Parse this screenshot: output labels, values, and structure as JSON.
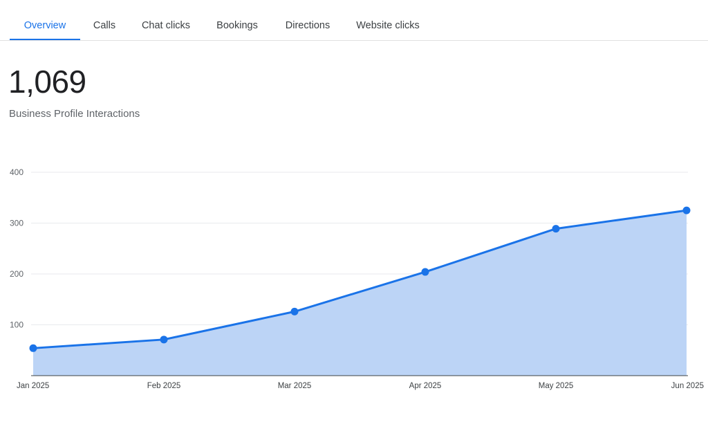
{
  "tabs": [
    {
      "label": "Overview",
      "active": true
    },
    {
      "label": "Calls",
      "active": false
    },
    {
      "label": "Chat clicks",
      "active": false
    },
    {
      "label": "Bookings",
      "active": false
    },
    {
      "label": "Directions",
      "active": false
    },
    {
      "label": "Website clicks",
      "active": false
    }
  ],
  "summary": {
    "total": "1,069",
    "label": "Business Profile Interactions"
  },
  "colors": {
    "accent": "#1a73e8",
    "area_fill": "#bcd4f6",
    "line": "#1a73e8"
  },
  "chart_data": {
    "type": "area",
    "categories": [
      "Jan 2025",
      "Feb 2025",
      "Mar 2025",
      "Apr 2025",
      "May 2025",
      "Jun 2025"
    ],
    "values": [
      54,
      71,
      126,
      204,
      289,
      325
    ],
    "ylim": [
      0,
      400
    ],
    "yticks": [
      100,
      200,
      300,
      400
    ],
    "grid": true,
    "markers": true
  }
}
